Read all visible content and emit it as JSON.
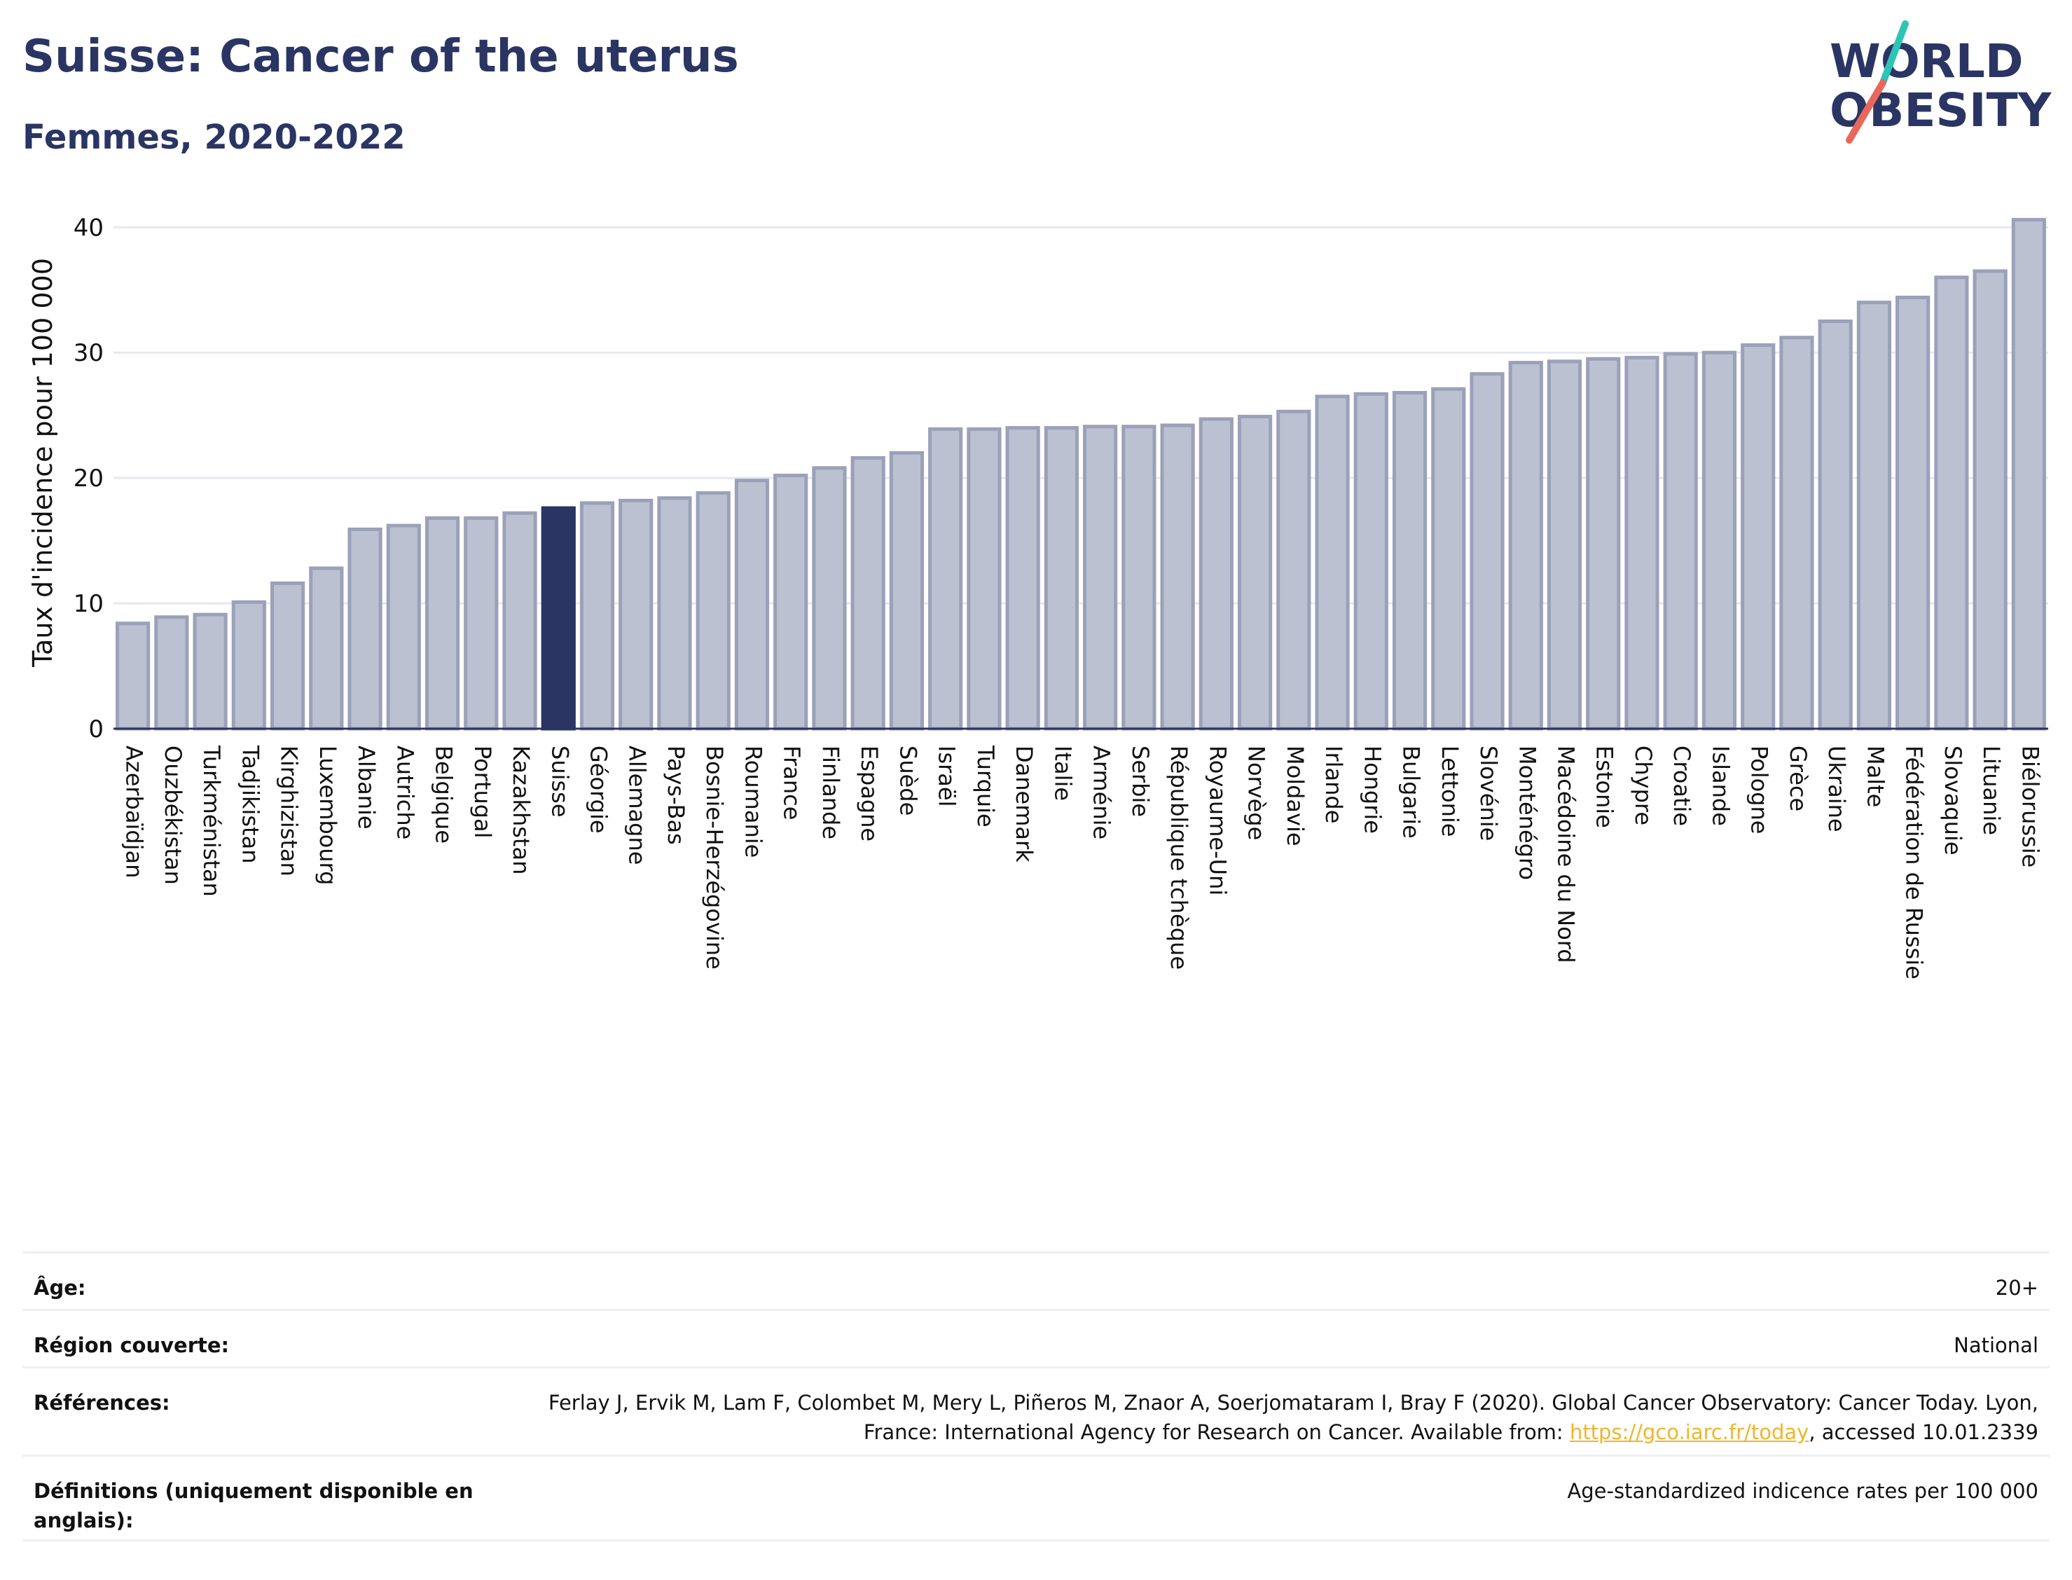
{
  "header": {
    "title": "Suisse: Cancer of the uterus",
    "subtitle": "Femmes, 2020-2022"
  },
  "logo": {
    "line1": "WORLD",
    "line2": "OBESITY",
    "slash_colors": [
      "#2ec4b6",
      "#e8675b"
    ]
  },
  "colors": {
    "bar": "#bcc1d1",
    "bar_border": "#9aa1b8",
    "highlight": "#2a3563",
    "grid": "#e6e9ef",
    "axis": "#2a3563"
  },
  "chart_data": {
    "type": "bar",
    "title": "Suisse: Cancer of the uterus",
    "subtitle": "Femmes, 2020-2022",
    "xlabel": "",
    "ylabel": "Taux d'incidence pour 100 000",
    "ylim": [
      0,
      40.8
    ],
    "yticks": [
      0,
      10,
      20,
      30,
      40
    ],
    "grid": true,
    "highlight": "Suisse",
    "categories": [
      "Azerbaïdjan",
      "Ouzbékistan",
      "Turkménistan",
      "Tadjikistan",
      "Kirghizistan",
      "Luxembourg",
      "Albanie",
      "Autriche",
      "Belgique",
      "Portugal",
      "Kazakhstan",
      "Suisse",
      "Géorgie",
      "Allemagne",
      "Pays-Bas",
      "Bosnie-Herzégovine",
      "Roumanie",
      "France",
      "Finlande",
      "Espagne",
      "Suède",
      "Israël",
      "Turquie",
      "Danemark",
      "Italie",
      "Arménie",
      "Serbie",
      "République tchèque",
      "Royaume-Uni",
      "Norvège",
      "Moldavie",
      "Irlande",
      "Hongrie",
      "Bulgarie",
      "Lettonie",
      "Slovénie",
      "Monténégro",
      "Macédoine du Nord",
      "Estonie",
      "Chypre",
      "Croatie",
      "Islande",
      "Pologne",
      "Grèce",
      "Ukraine",
      "Malte",
      "Fédération de Russie",
      "Slovaquie",
      "Lituanie",
      "Biélorussie"
    ],
    "values": [
      8.4,
      8.9,
      9.1,
      10.1,
      11.6,
      12.8,
      15.9,
      16.2,
      16.8,
      16.8,
      17.2,
      17.6,
      18.0,
      18.2,
      18.4,
      18.8,
      19.8,
      20.2,
      20.8,
      21.6,
      22.0,
      23.9,
      23.9,
      24.0,
      24.0,
      24.1,
      24.1,
      24.2,
      24.7,
      24.9,
      25.3,
      26.5,
      26.7,
      26.8,
      27.1,
      28.3,
      29.2,
      29.3,
      29.5,
      29.6,
      29.9,
      30.0,
      30.6,
      31.2,
      32.5,
      34.0,
      34.4,
      36.0,
      36.5,
      40.6
    ]
  },
  "info_table": [
    {
      "label": "Âge:",
      "value": "20+"
    },
    {
      "label": "Région couverte:",
      "value": "National"
    },
    {
      "label": "Références:",
      "value_before": "Ferlay J, Ervik M, Lam F, Colombet M, Mery L, Piñeros M, Znaor A, Soerjomataram I, Bray F (2020). Global Cancer Observatory: Cancer Today. Lyon, France: International Agency for Research on Cancer. Available from: ",
      "link": "https://gco.iarc.fr/today",
      "value_after": ", accessed 10.01.2339"
    },
    {
      "label": "Définitions (uniquement disponible en anglais):",
      "value": "Age-standardized indicence rates per 100 000"
    }
  ]
}
